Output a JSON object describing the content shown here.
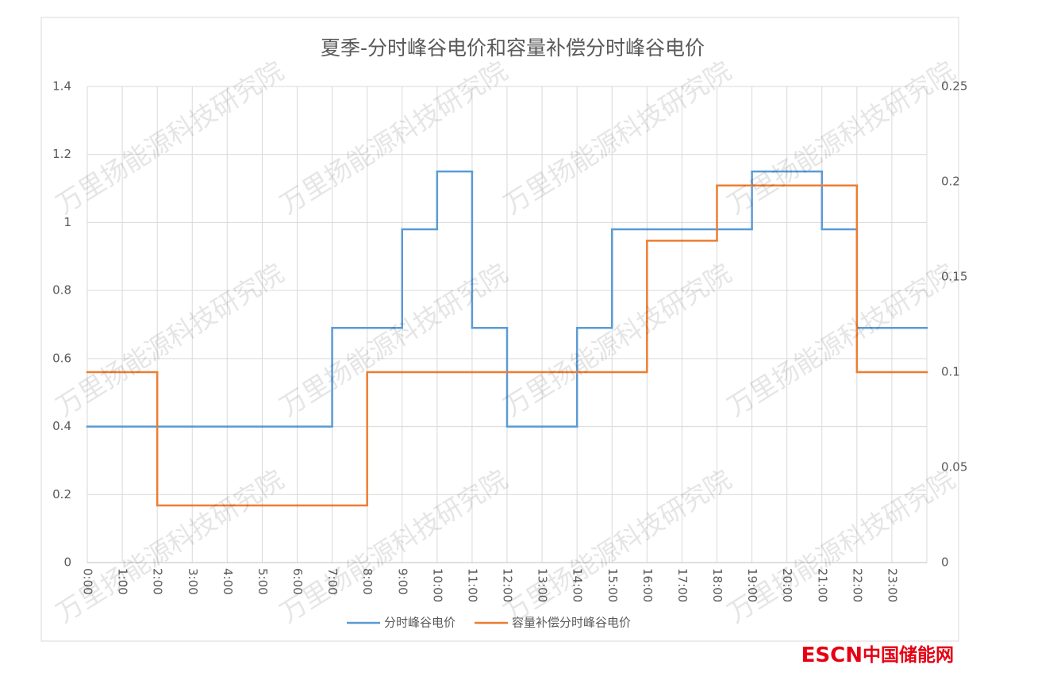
{
  "chart_data": {
    "type": "step",
    "title": "夏季-分时峰谷电价和容量补偿分时峰谷电价",
    "categories": [
      "0:00",
      "1:00",
      "2:00",
      "3:00",
      "4:00",
      "5:00",
      "6:00",
      "7:00",
      "8:00",
      "9:00",
      "10:00",
      "11:00",
      "12:00",
      "13:00",
      "14:00",
      "15:00",
      "16:00",
      "17:00",
      "18:00",
      "19:00",
      "20:00",
      "21:00",
      "22:00",
      "23:00"
    ],
    "series": [
      {
        "name": "分时峰谷电价",
        "color": "#5b9bd5",
        "values": [
          0.4,
          0.4,
          0.4,
          0.4,
          0.4,
          0.4,
          0.4,
          0.69,
          0.69,
          0.98,
          1.15,
          0.69,
          0.4,
          0.4,
          0.69,
          0.98,
          0.98,
          0.98,
          0.98,
          1.15,
          1.15,
          0.98,
          0.69,
          0.69
        ]
      },
      {
        "name": "容量补偿分时峰谷电价",
        "color": "#ed7d31",
        "axis": "y2",
        "values": [
          0.1,
          0.1,
          0.03,
          0.03,
          0.03,
          0.03,
          0.03,
          0.03,
          0.1,
          0.1,
          0.1,
          0.1,
          0.1,
          0.1,
          0.1,
          0.1,
          0.169,
          0.169,
          0.198,
          0.198,
          0.198,
          0.198,
          0.1,
          0.1
        ]
      }
    ],
    "ylim": [
      0,
      1.4
    ],
    "yticks": [
      0,
      0.2,
      0.4,
      0.6,
      0.8,
      1,
      1.2,
      1.4
    ],
    "y2lim": [
      0,
      0.25
    ],
    "y2ticks": [
      0,
      0.05,
      0.1,
      0.15,
      0.2,
      0.25
    ],
    "grid": true,
    "legend": "bottom"
  },
  "watermark": "万里扬能源科技研究院",
  "logo": {
    "brand": "ESCN",
    "site": "中国储能网"
  }
}
